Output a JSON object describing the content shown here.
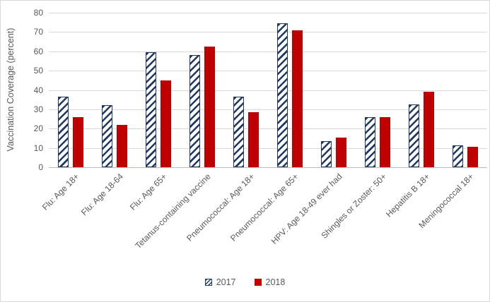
{
  "chart_data": {
    "type": "bar",
    "title": "",
    "xlabel": "",
    "ylabel": "Vaccination Coverage (percent)",
    "ylim": [
      0,
      80
    ],
    "ytick_step": 10,
    "grid": true,
    "legend_position": "bottom-center",
    "categories": [
      "Flu: Age 18+",
      "Flu: Age 18-64",
      "Flu: Age 65+",
      "Tetanus-containing vaccine",
      "Pneumococcal: Age 18+",
      "Pneumococcal: Age 65+",
      "HPV: Age 18-49 ever had",
      "Shingles or Zoster: 50+",
      "Hepatitis B 18+",
      "Meningococcal 18+"
    ],
    "series": [
      {
        "name": "2017",
        "style": "hatched",
        "color": "#1F3864",
        "values": [
          36.5,
          32,
          59.5,
          58,
          36.5,
          74.5,
          13.5,
          26,
          32.5,
          11.5
        ]
      },
      {
        "name": "2018",
        "style": "solid",
        "color": "#C00000",
        "values": [
          26,
          22,
          45,
          62.5,
          28.5,
          71,
          15.5,
          26,
          39,
          10.5
        ]
      }
    ]
  },
  "colors": {
    "bar_2017": "#1F3864",
    "bar_2018": "#C00000",
    "gridline": "#D9D9D9",
    "axis_line": "#BFBFBF",
    "text": "#595959",
    "border": "#D9D9D9",
    "background": "#FFFFFF"
  }
}
